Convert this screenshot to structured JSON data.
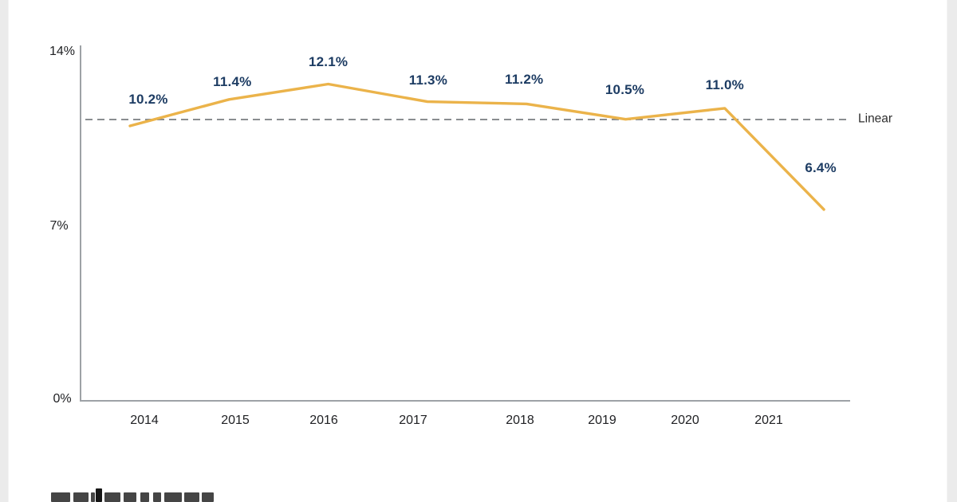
{
  "chart_data": {
    "type": "line",
    "title": "",
    "categories": [
      "2014",
      "2015",
      "2016",
      "2017",
      "2018",
      "2019",
      "2020",
      "2021"
    ],
    "series": [
      {
        "name": "",
        "values": [
          10.2,
          11.4,
          12.1,
          11.3,
          11.2,
          10.5,
          11.0,
          6.4
        ],
        "color": "#EBB34A"
      }
    ],
    "data_labels": [
      "10.2%",
      "11.4%",
      "12.1%",
      "11.3%",
      "11.2%",
      "10.5%",
      "11.0%",
      "6.4%"
    ],
    "y_tick_labels": [
      "14%",
      "7%",
      "0%"
    ],
    "ylim": [
      0,
      14
    ],
    "grid": "off",
    "trendline": {
      "label": "Linear",
      "style": "dashed",
      "color": "#8A8D90"
    },
    "colors": {
      "line": "#EBB34A",
      "data_label": "#1D3C63",
      "axis": "#9EA2A6",
      "tick_text": "#202124",
      "trend_label_text": "#2E2E2E"
    }
  },
  "footer": {
    "wordmark_icon": "cropped-wordmark-letter-tops"
  }
}
